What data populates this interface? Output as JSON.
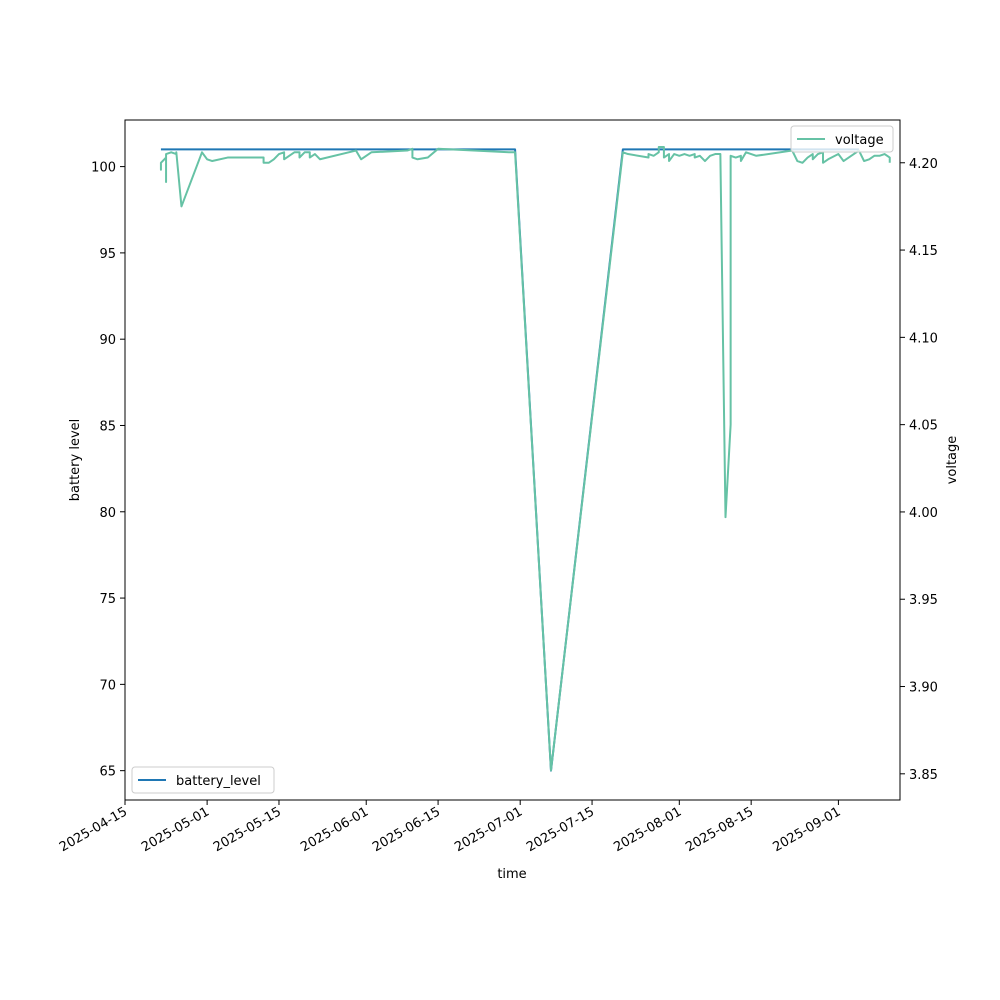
{
  "chart_data": {
    "type": "line",
    "xlabel": "time",
    "ylabel": "battery level",
    "y2label": "voltage",
    "xlim": [
      "2025-04-15",
      "2025-09-13"
    ],
    "ylim": [
      63.3,
      102.7
    ],
    "y2lim": [
      3.835,
      4.2245
    ],
    "x_ticks": [
      "2025-04-15",
      "2025-05-01",
      "2025-05-15",
      "2025-06-01",
      "2025-06-15",
      "2025-07-01",
      "2025-07-15",
      "2025-08-01",
      "2025-08-15",
      "2025-09-01"
    ],
    "y_ticks": [
      65,
      70,
      75,
      80,
      85,
      90,
      95,
      100
    ],
    "y2_ticks": [
      "3.85",
      "3.90",
      "3.95",
      "4.00",
      "4.05",
      "4.10",
      "4.15",
      "4.20"
    ],
    "grid": false,
    "series": [
      {
        "name": "battery_level",
        "axis": "left",
        "color": "#1f77b4",
        "legend_position": "lower-left",
        "points": [
          [
            "2025-04-22",
            101
          ],
          [
            "2025-06-30",
            101
          ],
          [
            "2025-07-07",
            65
          ],
          [
            "2025-07-21",
            101
          ],
          [
            "2025-09-05",
            101
          ]
        ]
      },
      {
        "name": "voltage",
        "axis": "right",
        "color": "#66c2a5",
        "legend_position": "upper-right",
        "points": [
          [
            "2025-04-22",
            4.198
          ],
          [
            "2025-04-22",
            4.196
          ],
          [
            "2025-04-22",
            4.2
          ],
          [
            "2025-04-23",
            4.203
          ],
          [
            "2025-04-23",
            4.189
          ],
          [
            "2025-04-23",
            4.2
          ],
          [
            "2025-04-23",
            4.205
          ],
          [
            "2025-04-24",
            4.206
          ],
          [
            "2025-04-25",
            4.205
          ],
          [
            "2025-04-25",
            4.206
          ],
          [
            "2025-04-26",
            4.175
          ],
          [
            "2025-04-30",
            4.206
          ],
          [
            "2025-05-01",
            4.202
          ],
          [
            "2025-05-02",
            4.201
          ],
          [
            "2025-05-05",
            4.203
          ],
          [
            "2025-05-12",
            4.203
          ],
          [
            "2025-05-12",
            4.2
          ],
          [
            "2025-05-13",
            4.2
          ],
          [
            "2025-05-14",
            4.202
          ],
          [
            "2025-05-15",
            4.205
          ],
          [
            "2025-05-16",
            4.206
          ],
          [
            "2025-05-16",
            4.202
          ],
          [
            "2025-05-17",
            4.204
          ],
          [
            "2025-05-18",
            4.206
          ],
          [
            "2025-05-19",
            4.206
          ],
          [
            "2025-05-19",
            4.203
          ],
          [
            "2025-05-20",
            4.206
          ],
          [
            "2025-05-21",
            4.206
          ],
          [
            "2025-05-21",
            4.203
          ],
          [
            "2025-05-22",
            4.205
          ],
          [
            "2025-05-23",
            4.202
          ],
          [
            "2025-05-30",
            4.207
          ],
          [
            "2025-05-31",
            4.202
          ],
          [
            "2025-06-01",
            4.204
          ],
          [
            "2025-06-02",
            4.206
          ],
          [
            "2025-06-09",
            4.207
          ],
          [
            "2025-06-10",
            4.208
          ],
          [
            "2025-06-10",
            4.203
          ],
          [
            "2025-06-11",
            4.202
          ],
          [
            "2025-06-13",
            4.203
          ],
          [
            "2025-06-15",
            4.208
          ],
          [
            "2025-06-29",
            4.206
          ],
          [
            "2025-06-30",
            4.206
          ],
          [
            "2025-07-07",
            3.852
          ],
          [
            "2025-07-21",
            4.206
          ],
          [
            "2025-07-22",
            4.205
          ],
          [
            "2025-07-26",
            4.203
          ],
          [
            "2025-07-26",
            4.205
          ],
          [
            "2025-07-27",
            4.204
          ],
          [
            "2025-07-28",
            4.206
          ],
          [
            "2025-07-28",
            4.209
          ],
          [
            "2025-07-29",
            4.209
          ],
          [
            "2025-07-29",
            4.203
          ],
          [
            "2025-07-30",
            4.205
          ],
          [
            "2025-07-30",
            4.201
          ],
          [
            "2025-07-31",
            4.205
          ],
          [
            "2025-08-01",
            4.204
          ],
          [
            "2025-08-02",
            4.205
          ],
          [
            "2025-08-03",
            4.204
          ],
          [
            "2025-08-04",
            4.205
          ],
          [
            "2025-08-04",
            4.203
          ],
          [
            "2025-08-05",
            4.204
          ],
          [
            "2025-08-06",
            4.201
          ],
          [
            "2025-08-07",
            4.204
          ],
          [
            "2025-08-08",
            4.205
          ],
          [
            "2025-08-09",
            4.205
          ],
          [
            "2025-08-10",
            3.997
          ],
          [
            "2025-08-11",
            4.05
          ],
          [
            "2025-08-11",
            4.204
          ],
          [
            "2025-08-12",
            4.203
          ],
          [
            "2025-08-13",
            4.204
          ],
          [
            "2025-08-13",
            4.201
          ],
          [
            "2025-08-14",
            4.206
          ],
          [
            "2025-08-15",
            4.205
          ],
          [
            "2025-08-16",
            4.204
          ],
          [
            "2025-08-23",
            4.207
          ],
          [
            "2025-08-24",
            4.201
          ],
          [
            "2025-08-25",
            4.2
          ],
          [
            "2025-08-26",
            4.203
          ],
          [
            "2025-08-27",
            4.205
          ],
          [
            "2025-08-27",
            4.202
          ],
          [
            "2025-08-28",
            4.205
          ],
          [
            "2025-08-29",
            4.206
          ],
          [
            "2025-08-29",
            4.2
          ],
          [
            "2025-08-30",
            4.202
          ],
          [
            "2025-09-01",
            4.205
          ],
          [
            "2025-09-02",
            4.201
          ],
          [
            "2025-09-03",
            4.203
          ],
          [
            "2025-09-04",
            4.205
          ],
          [
            "2025-09-05",
            4.207
          ],
          [
            "2025-09-06",
            4.201
          ],
          [
            "2025-09-07",
            4.202
          ],
          [
            "2025-09-08",
            4.204
          ],
          [
            "2025-09-09",
            4.204
          ],
          [
            "2025-09-10",
            4.205
          ],
          [
            "2025-09-11",
            4.203
          ],
          [
            "2025-09-11",
            4.2
          ]
        ]
      }
    ]
  }
}
